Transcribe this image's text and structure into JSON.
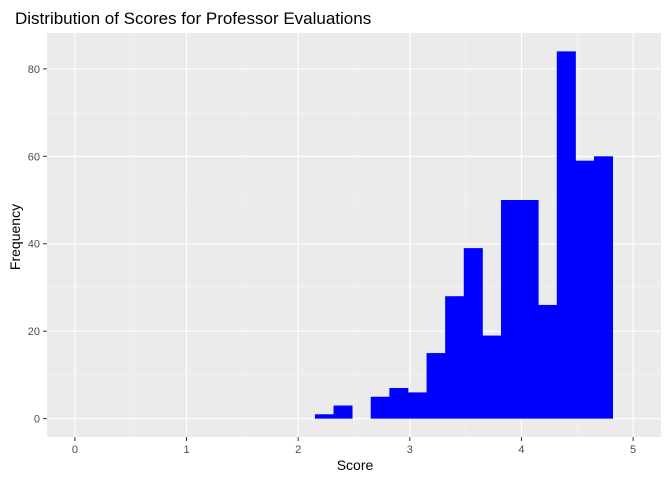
{
  "chart_data": {
    "type": "bar",
    "subtype": "histogram",
    "title": "Distribution of Scores for Professor Evaluations",
    "xlabel": "Score",
    "ylabel": "Frequency",
    "xlim": [
      -0.25,
      5.25
    ],
    "ylim": [
      -4.2,
      88.2
    ],
    "x_ticks": [
      0,
      1,
      2,
      3,
      4,
      5
    ],
    "y_ticks": [
      0,
      20,
      40,
      60,
      80
    ],
    "bin_width": 0.1667,
    "bins": [
      {
        "start": 2.15,
        "end": 2.3167,
        "count": 1
      },
      {
        "start": 2.3167,
        "end": 2.4833,
        "count": 3
      },
      {
        "start": 2.4833,
        "end": 2.65,
        "count": 0
      },
      {
        "start": 2.65,
        "end": 2.8167,
        "count": 5
      },
      {
        "start": 2.8167,
        "end": 2.9833,
        "count": 7
      },
      {
        "start": 2.9833,
        "end": 3.15,
        "count": 6
      },
      {
        "start": 3.15,
        "end": 3.3167,
        "count": 15
      },
      {
        "start": 3.3167,
        "end": 3.4833,
        "count": 28
      },
      {
        "start": 3.4833,
        "end": 3.65,
        "count": 39
      },
      {
        "start": 3.65,
        "end": 3.8167,
        "count": 19
      },
      {
        "start": 3.8167,
        "end": 3.9833,
        "count": 50
      },
      {
        "start": 3.9833,
        "end": 4.15,
        "count": 50
      },
      {
        "start": 4.15,
        "end": 4.3167,
        "count": 26
      },
      {
        "start": 4.3167,
        "end": 4.4833,
        "count": 84
      },
      {
        "start": 4.4833,
        "end": 4.65,
        "count": 59
      },
      {
        "start": 4.65,
        "end": 4.8167,
        "count": 60
      }
    ],
    "grid": true,
    "legend": "none",
    "colors": {
      "bar_fill": "#0000FF",
      "panel_background": "#EBEBEB",
      "grid_major": "#FFFFFF",
      "grid_minor": "#F5F5F5"
    }
  }
}
